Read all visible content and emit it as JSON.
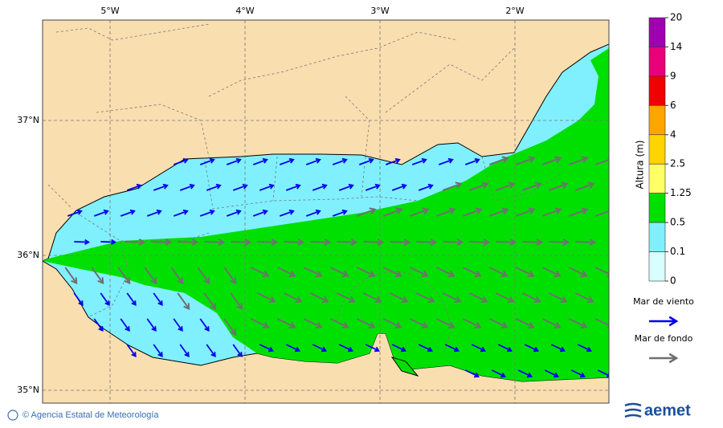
{
  "map": {
    "lon_labels": [
      "5°W",
      "4°W",
      "3°W",
      "2°W"
    ],
    "lat_labels": [
      "37°N",
      "36°N",
      "35°N"
    ],
    "colorbar": {
      "title": "Altura (m)",
      "labels": [
        "20",
        "14",
        "9",
        "6",
        "4",
        "2.5",
        "1.25",
        "0.5",
        "0.1",
        "0"
      ],
      "colors": [
        "#a000b0",
        "#e8007a",
        "#f00000",
        "#ffa500",
        "#ffd400",
        "#ffff66",
        "#00e000",
        "#80f0ff",
        "#d8ffff"
      ]
    },
    "legend": [
      {
        "label": "Mar de viento",
        "color": "#0000ee"
      },
      {
        "label": "Mar de fondo",
        "color": "#707070"
      }
    ]
  },
  "footer": {
    "credit": "© Agencia Estatal de Meteorología",
    "logo": "aemet"
  }
}
